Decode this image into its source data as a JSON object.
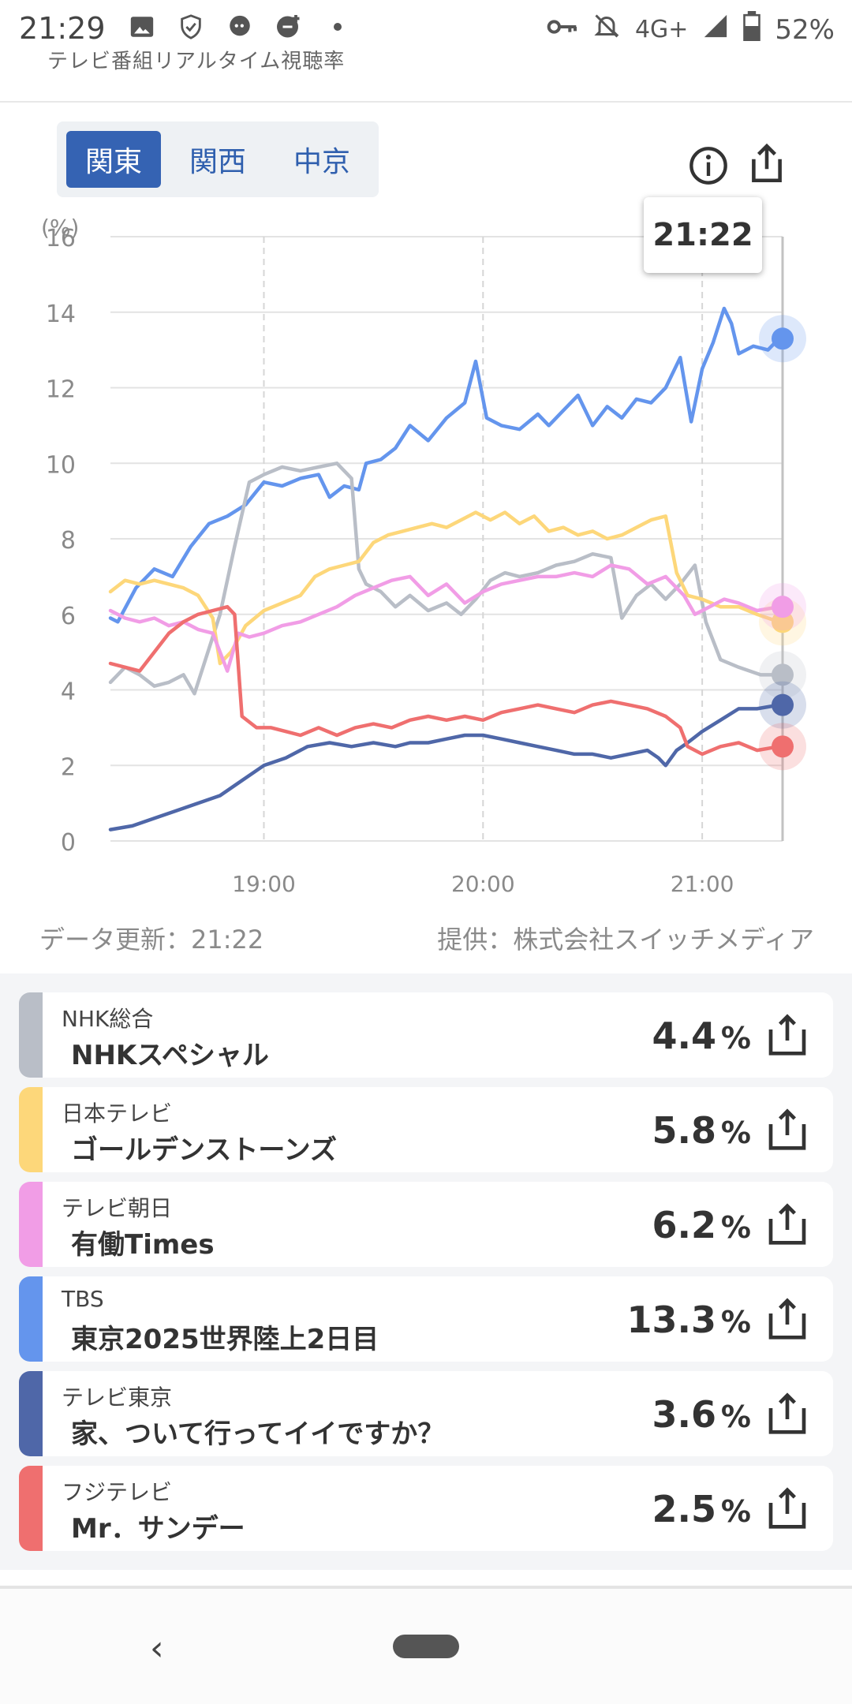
{
  "status_bar": {
    "time": "21:29",
    "network": "4G+",
    "battery": "52%",
    "icons_left": [
      "image-icon",
      "shield-icon",
      "chat-bubble-icon",
      "chat-plus-icon",
      "dot-icon"
    ],
    "icons_right": [
      "key-icon",
      "bell-off-icon",
      "signal-icon",
      "battery-icon"
    ]
  },
  "header": {
    "title": "テレビ番組リアルタイム視聴率"
  },
  "tabs": [
    {
      "label": "関東",
      "active": true
    },
    {
      "label": "関西",
      "active": false
    },
    {
      "label": "中京",
      "active": false
    }
  ],
  "chart": {
    "tooltip_time": "21:22",
    "update_text": "データ更新：21:22",
    "provider_text": "提供：株式会社スイッチメディア"
  },
  "chart_data": {
    "type": "line",
    "ylabel": "(%)",
    "ylim": [
      0,
      16
    ],
    "yticks": [
      0,
      2,
      4,
      6,
      8,
      10,
      12,
      14,
      16
    ],
    "x_ticks": [
      "19:00",
      "20:00",
      "21:00"
    ],
    "x_range_minutes": [
      1098,
      1282
    ],
    "cursor_time": "21:22",
    "grid": true,
    "series": [
      {
        "channel": "TBS",
        "color": "#6495ed",
        "points": [
          [
            1098,
            5.9
          ],
          [
            1100,
            5.8
          ],
          [
            1105,
            6.7
          ],
          [
            1110,
            7.2
          ],
          [
            1115,
            7.0
          ],
          [
            1120,
            7.8
          ],
          [
            1125,
            8.4
          ],
          [
            1130,
            8.6
          ],
          [
            1135,
            8.9
          ],
          [
            1140,
            9.5
          ],
          [
            1145,
            9.4
          ],
          [
            1150,
            9.6
          ],
          [
            1155,
            9.7
          ],
          [
            1158,
            9.1
          ],
          [
            1162,
            9.4
          ],
          [
            1166,
            9.3
          ],
          [
            1168,
            10.0
          ],
          [
            1172,
            10.1
          ],
          [
            1176,
            10.4
          ],
          [
            1180,
            11.0
          ],
          [
            1185,
            10.6
          ],
          [
            1190,
            11.2
          ],
          [
            1195,
            11.6
          ],
          [
            1198,
            12.7
          ],
          [
            1201,
            11.2
          ],
          [
            1205,
            11.0
          ],
          [
            1210,
            10.9
          ],
          [
            1215,
            11.3
          ],
          [
            1218,
            11.0
          ],
          [
            1222,
            11.4
          ],
          [
            1226,
            11.8
          ],
          [
            1230,
            11.0
          ],
          [
            1234,
            11.5
          ],
          [
            1238,
            11.2
          ],
          [
            1242,
            11.7
          ],
          [
            1246,
            11.6
          ],
          [
            1250,
            12.0
          ],
          [
            1254,
            12.8
          ],
          [
            1257,
            11.1
          ],
          [
            1260,
            12.5
          ],
          [
            1263,
            13.2
          ],
          [
            1266,
            14.1
          ],
          [
            1268,
            13.7
          ],
          [
            1270,
            12.9
          ],
          [
            1274,
            13.1
          ],
          [
            1278,
            13.0
          ],
          [
            1281,
            13.3
          ]
        ]
      },
      {
        "channel": "NHK総合",
        "color": "#b9bec7",
        "points": [
          [
            1098,
            4.2
          ],
          [
            1102,
            4.6
          ],
          [
            1106,
            4.4
          ],
          [
            1110,
            4.1
          ],
          [
            1114,
            4.2
          ],
          [
            1118,
            4.4
          ],
          [
            1121,
            3.9
          ],
          [
            1124,
            4.8
          ],
          [
            1128,
            6.0
          ],
          [
            1132,
            7.8
          ],
          [
            1136,
            9.5
          ],
          [
            1140,
            9.7
          ],
          [
            1145,
            9.9
          ],
          [
            1150,
            9.8
          ],
          [
            1155,
            9.9
          ],
          [
            1160,
            10.0
          ],
          [
            1164,
            9.6
          ],
          [
            1166,
            7.2
          ],
          [
            1168,
            6.8
          ],
          [
            1172,
            6.6
          ],
          [
            1176,
            6.2
          ],
          [
            1180,
            6.5
          ],
          [
            1185,
            6.1
          ],
          [
            1190,
            6.3
          ],
          [
            1194,
            6.0
          ],
          [
            1198,
            6.4
          ],
          [
            1202,
            6.9
          ],
          [
            1206,
            7.1
          ],
          [
            1210,
            7.0
          ],
          [
            1215,
            7.1
          ],
          [
            1220,
            7.3
          ],
          [
            1225,
            7.4
          ],
          [
            1230,
            7.6
          ],
          [
            1235,
            7.5
          ],
          [
            1238,
            5.9
          ],
          [
            1242,
            6.5
          ],
          [
            1246,
            6.8
          ],
          [
            1250,
            6.4
          ],
          [
            1254,
            6.8
          ],
          [
            1258,
            7.3
          ],
          [
            1261,
            5.8
          ],
          [
            1265,
            4.8
          ],
          [
            1270,
            4.6
          ],
          [
            1276,
            4.4
          ],
          [
            1281,
            4.4
          ]
        ]
      },
      {
        "channel": "日本テレビ",
        "color": "#fdd77a",
        "points": [
          [
            1098,
            6.6
          ],
          [
            1102,
            6.9
          ],
          [
            1106,
            6.8
          ],
          [
            1110,
            6.9
          ],
          [
            1114,
            6.8
          ],
          [
            1118,
            6.7
          ],
          [
            1122,
            6.5
          ],
          [
            1126,
            5.9
          ],
          [
            1128,
            4.7
          ],
          [
            1131,
            5.0
          ],
          [
            1135,
            5.7
          ],
          [
            1140,
            6.1
          ],
          [
            1145,
            6.3
          ],
          [
            1150,
            6.5
          ],
          [
            1154,
            7.0
          ],
          [
            1158,
            7.2
          ],
          [
            1162,
            7.3
          ],
          [
            1166,
            7.4
          ],
          [
            1170,
            7.9
          ],
          [
            1174,
            8.1
          ],
          [
            1178,
            8.2
          ],
          [
            1182,
            8.3
          ],
          [
            1186,
            8.4
          ],
          [
            1190,
            8.3
          ],
          [
            1194,
            8.5
          ],
          [
            1198,
            8.7
          ],
          [
            1202,
            8.5
          ],
          [
            1206,
            8.7
          ],
          [
            1210,
            8.4
          ],
          [
            1214,
            8.6
          ],
          [
            1218,
            8.2
          ],
          [
            1222,
            8.3
          ],
          [
            1226,
            8.1
          ],
          [
            1230,
            8.2
          ],
          [
            1234,
            8.0
          ],
          [
            1238,
            8.1
          ],
          [
            1242,
            8.3
          ],
          [
            1246,
            8.5
          ],
          [
            1250,
            8.6
          ],
          [
            1253,
            7.1
          ],
          [
            1256,
            6.5
          ],
          [
            1260,
            6.4
          ],
          [
            1265,
            6.2
          ],
          [
            1270,
            6.2
          ],
          [
            1275,
            6.0
          ],
          [
            1281,
            5.8
          ]
        ]
      },
      {
        "channel": "テレビ朝日",
        "color": "#f19de6",
        "points": [
          [
            1098,
            6.1
          ],
          [
            1102,
            5.9
          ],
          [
            1106,
            5.8
          ],
          [
            1110,
            5.9
          ],
          [
            1114,
            5.7
          ],
          [
            1118,
            5.8
          ],
          [
            1122,
            5.6
          ],
          [
            1126,
            5.5
          ],
          [
            1128,
            5.0
          ],
          [
            1130,
            4.5
          ],
          [
            1133,
            5.5
          ],
          [
            1136,
            5.4
          ],
          [
            1140,
            5.5
          ],
          [
            1145,
            5.7
          ],
          [
            1150,
            5.8
          ],
          [
            1155,
            6.0
          ],
          [
            1160,
            6.2
          ],
          [
            1165,
            6.5
          ],
          [
            1170,
            6.7
          ],
          [
            1175,
            6.9
          ],
          [
            1180,
            7.0
          ],
          [
            1185,
            6.5
          ],
          [
            1190,
            6.8
          ],
          [
            1195,
            6.3
          ],
          [
            1200,
            6.6
          ],
          [
            1205,
            6.8
          ],
          [
            1210,
            6.9
          ],
          [
            1215,
            7.0
          ],
          [
            1220,
            7.0
          ],
          [
            1225,
            7.1
          ],
          [
            1230,
            7.0
          ],
          [
            1235,
            7.3
          ],
          [
            1240,
            7.2
          ],
          [
            1245,
            6.8
          ],
          [
            1250,
            7.0
          ],
          [
            1255,
            6.5
          ],
          [
            1258,
            6.0
          ],
          [
            1262,
            6.2
          ],
          [
            1266,
            6.4
          ],
          [
            1270,
            6.3
          ],
          [
            1275,
            6.1
          ],
          [
            1281,
            6.2
          ]
        ]
      },
      {
        "channel": "テレビ東京",
        "color": "#4f67a8",
        "points": [
          [
            1098,
            0.3
          ],
          [
            1104,
            0.4
          ],
          [
            1110,
            0.6
          ],
          [
            1116,
            0.8
          ],
          [
            1122,
            1.0
          ],
          [
            1128,
            1.2
          ],
          [
            1134,
            1.6
          ],
          [
            1140,
            2.0
          ],
          [
            1146,
            2.2
          ],
          [
            1152,
            2.5
          ],
          [
            1158,
            2.6
          ],
          [
            1164,
            2.5
          ],
          [
            1170,
            2.6
          ],
          [
            1176,
            2.5
          ],
          [
            1180,
            2.6
          ],
          [
            1185,
            2.6
          ],
          [
            1190,
            2.7
          ],
          [
            1195,
            2.8
          ],
          [
            1200,
            2.8
          ],
          [
            1205,
            2.7
          ],
          [
            1210,
            2.6
          ],
          [
            1215,
            2.5
          ],
          [
            1220,
            2.4
          ],
          [
            1225,
            2.3
          ],
          [
            1230,
            2.3
          ],
          [
            1235,
            2.2
          ],
          [
            1240,
            2.3
          ],
          [
            1245,
            2.4
          ],
          [
            1248,
            2.2
          ],
          [
            1250,
            2.0
          ],
          [
            1253,
            2.4
          ],
          [
            1256,
            2.6
          ],
          [
            1260,
            2.9
          ],
          [
            1265,
            3.2
          ],
          [
            1270,
            3.5
          ],
          [
            1275,
            3.5
          ],
          [
            1281,
            3.6
          ]
        ]
      },
      {
        "channel": "フジテレビ",
        "color": "#ef6f6f",
        "points": [
          [
            1098,
            4.7
          ],
          [
            1102,
            4.6
          ],
          [
            1106,
            4.5
          ],
          [
            1110,
            5.0
          ],
          [
            1114,
            5.5
          ],
          [
            1118,
            5.8
          ],
          [
            1122,
            6.0
          ],
          [
            1126,
            6.1
          ],
          [
            1130,
            6.2
          ],
          [
            1132,
            6.0
          ],
          [
            1134,
            3.3
          ],
          [
            1138,
            3.0
          ],
          [
            1142,
            3.0
          ],
          [
            1146,
            2.9
          ],
          [
            1150,
            2.8
          ],
          [
            1155,
            3.0
          ],
          [
            1160,
            2.8
          ],
          [
            1165,
            3.0
          ],
          [
            1170,
            3.1
          ],
          [
            1175,
            3.0
          ],
          [
            1180,
            3.2
          ],
          [
            1185,
            3.3
          ],
          [
            1190,
            3.2
          ],
          [
            1195,
            3.3
          ],
          [
            1200,
            3.2
          ],
          [
            1205,
            3.4
          ],
          [
            1210,
            3.5
          ],
          [
            1215,
            3.6
          ],
          [
            1220,
            3.5
          ],
          [
            1225,
            3.4
          ],
          [
            1230,
            3.6
          ],
          [
            1235,
            3.7
          ],
          [
            1240,
            3.6
          ],
          [
            1245,
            3.5
          ],
          [
            1250,
            3.3
          ],
          [
            1254,
            3.0
          ],
          [
            1256,
            2.5
          ],
          [
            1260,
            2.3
          ],
          [
            1265,
            2.5
          ],
          [
            1270,
            2.6
          ],
          [
            1275,
            2.4
          ],
          [
            1281,
            2.5
          ]
        ]
      }
    ]
  },
  "list": [
    {
      "channel": "NHK総合",
      "program": "NHKスペシャル",
      "value": "4.4",
      "unit": "%",
      "color": "#b9bec7"
    },
    {
      "channel": "日本テレビ",
      "program": "ゴールデンストーンズ",
      "value": "5.8",
      "unit": "%",
      "color": "#fdd77a"
    },
    {
      "channel": "テレビ朝日",
      "program": "有働Times",
      "value": "6.2",
      "unit": "%",
      "color": "#f19de6"
    },
    {
      "channel": "TBS",
      "program": "東京2025世界陸上2日目",
      "value": "13.3",
      "unit": "%",
      "color": "#6495ed"
    },
    {
      "channel": "テレビ東京",
      "program": "家、ついて行ってイイですか？",
      "value": "3.6",
      "unit": "%",
      "color": "#4f67a8"
    },
    {
      "channel": "フジテレビ",
      "program": "Mr．サンデー",
      "value": "2.5",
      "unit": "%",
      "color": "#ef6f6f"
    }
  ]
}
